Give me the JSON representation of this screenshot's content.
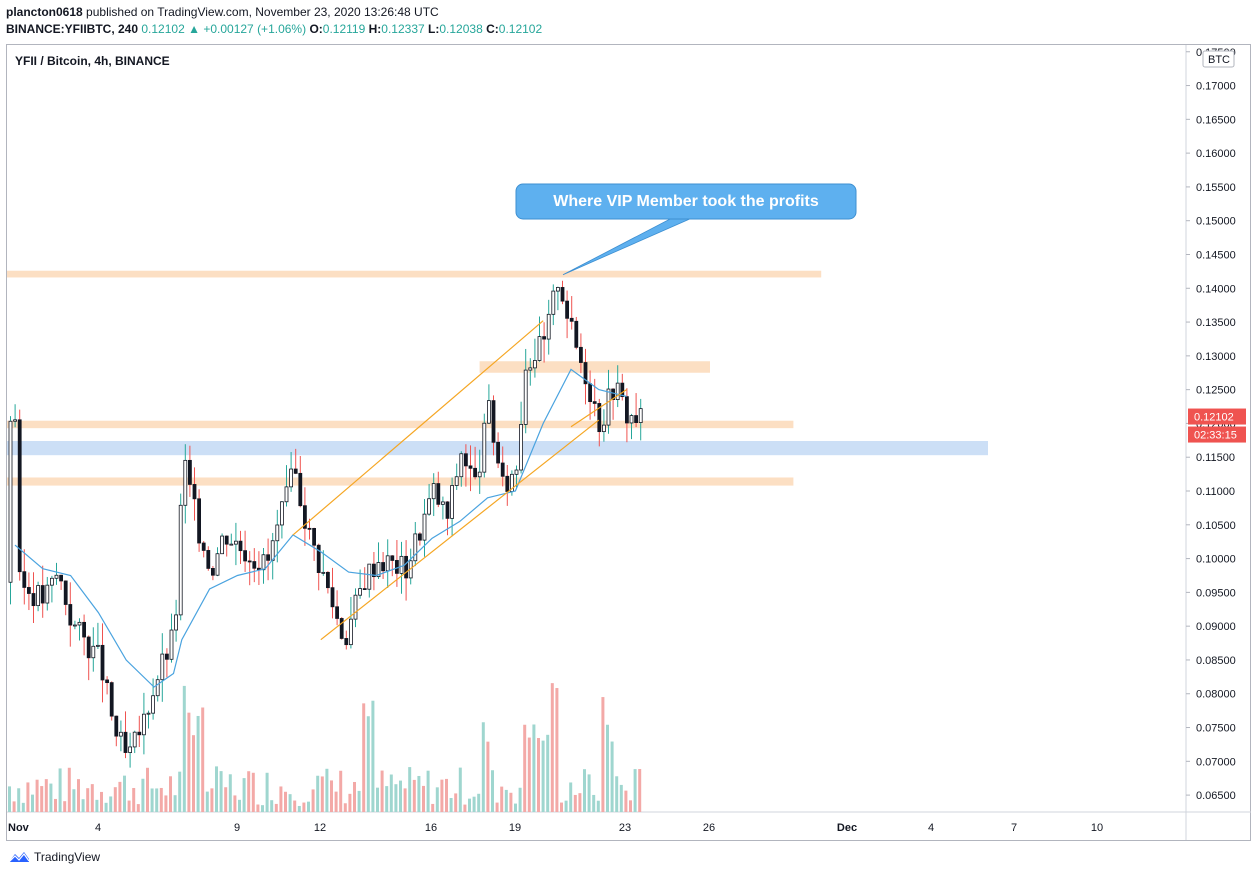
{
  "header": {
    "publisher": "plancton0618",
    "published_text": "published on TradingView.com, November 23, 2020 13:26:48 UTC",
    "symbol_line": "BINANCE:YFIIBTC, 240",
    "last": "0.12102",
    "change": "+0.00127 (+1.06%)",
    "o_label": "O:",
    "o": "0.12119",
    "h_label": "H:",
    "h": "0.12337",
    "l_label": "L:",
    "l": "0.12038",
    "c_label": "C:",
    "c": "0.12102"
  },
  "chart_title": "YFII / Bitcoin, 4h, BINANCE",
  "currency_badge": "BTC",
  "price_label": "0.12102",
  "countdown_label": "02:33:15",
  "annotation": "Where VIP Member took the profits",
  "footer": {
    "brand": "TradingView",
    "logo_icon": "tradingview-logo-icon"
  },
  "colors": {
    "up": "#26a69a",
    "down": "#ef5350",
    "candle_body": "#131722",
    "ma": "#4aa3df",
    "channel": "#f5a623",
    "zone_orange": "#fcd9b8",
    "zone_blue": "#c3d9f5",
    "callout": "#5eb0ef",
    "price_tag": "#ef5350"
  },
  "chart_data": {
    "type": "candlestick",
    "interval": "4h",
    "y_axis": {
      "ticks": [
        "0.17500",
        "0.17000",
        "0.16500",
        "0.16000",
        "0.15500",
        "0.15000",
        "0.14500",
        "0.14000",
        "0.13500",
        "0.13000",
        "0.12500",
        "0.12000",
        "0.11500",
        "0.11000",
        "0.10500",
        "0.10000",
        "0.09500",
        "0.09000",
        "0.08500",
        "0.08000",
        "0.07500",
        "0.07000",
        "0.06500"
      ],
      "range": [
        0.0625,
        0.176
      ]
    },
    "x_axis": {
      "ticks": [
        "Nov",
        "4",
        "9",
        "12",
        "16",
        "19",
        "23",
        "26",
        "Dec",
        "4",
        "7",
        "10"
      ],
      "bold_ticks": [
        "Nov",
        "Dec"
      ]
    },
    "zones": [
      {
        "type": "resistance",
        "from": 0.1416,
        "to": 0.1426,
        "x_start": "Nov 1",
        "x_end": "Nov 30"
      },
      {
        "type": "resistance",
        "from": 0.1275,
        "to": 0.1292,
        "x_start": "Nov 18",
        "x_end": "Nov 26"
      },
      {
        "type": "support",
        "from": 0.1193,
        "to": 0.1204,
        "x_start": "Nov 1",
        "x_end": "Nov 29"
      },
      {
        "type": "support",
        "from": 0.1108,
        "to": 0.112,
        "x_start": "Nov 1",
        "x_end": "Nov 29"
      },
      {
        "type": "range",
        "from": 0.1153,
        "to": 0.1174,
        "x_start": "Nov 1",
        "x_end": "Dec 6"
      }
    ],
    "channel": {
      "lower": [
        [
          "Nov 12",
          0.088
        ],
        [
          "Nov 22",
          0.1205
        ]
      ],
      "upper": [
        [
          "Nov 11",
          0.1035
        ],
        [
          "Nov 20",
          0.1352
        ]
      ],
      "extension": [
        [
          "Nov 21",
          0.1195
        ],
        [
          "Nov 23",
          0.125
        ]
      ]
    },
    "price_path": [
      [
        "Nov 1",
        0.0965
      ],
      [
        "Nov 2",
        0.094
      ],
      [
        "Nov 2.5",
        0.098
      ],
      [
        "Nov 3",
        0.0905
      ],
      [
        "Nov 4",
        0.085
      ],
      [
        "Nov 4.5",
        0.075
      ],
      [
        "Nov 5",
        0.07
      ],
      [
        "Nov 5.5",
        0.075
      ],
      [
        "Nov 6",
        0.082
      ],
      [
        "Nov 6.7",
        0.089
      ],
      [
        "Nov 7",
        0.115
      ],
      [
        "Nov 7.5",
        0.105
      ],
      [
        "Nov 8",
        0.0985
      ],
      [
        "Nov 8.5",
        0.104
      ],
      [
        "Nov 9",
        0.102
      ],
      [
        "Nov 10",
        0.099
      ],
      [
        "Nov 11",
        0.113
      ],
      [
        "Nov 11.5",
        0.104
      ],
      [
        "Nov 12",
        0.098
      ],
      [
        "Nov 12.8",
        0.088
      ],
      [
        "Nov 13.5",
        0.097
      ],
      [
        "Nov 14",
        0.1
      ],
      [
        "Nov 15",
        0.0985
      ],
      [
        "Nov 16",
        0.11
      ],
      [
        "Nov 16.5",
        0.106
      ],
      [
        "Nov 17",
        0.116
      ],
      [
        "Nov 17.5",
        0.111
      ],
      [
        "Nov 18",
        0.122
      ],
      [
        "Nov 18.5",
        0.11
      ],
      [
        "Nov 19",
        0.114
      ],
      [
        "Nov 19.3",
        0.129
      ],
      [
        "Nov 20",
        0.132
      ],
      [
        "Nov 20.5",
        0.142
      ],
      [
        "Nov 21",
        0.133
      ],
      [
        "Nov 21.5",
        0.127
      ],
      [
        "Nov 22",
        0.12
      ],
      [
        "Nov 22.5",
        0.126
      ],
      [
        "Nov 23",
        0.121
      ],
      [
        "Nov 23.5",
        0.121
      ]
    ],
    "ma_path": [
      [
        "Nov 1",
        0.102
      ],
      [
        "Nov 2",
        0.0985
      ],
      [
        "Nov 3",
        0.0975
      ],
      [
        "Nov 4",
        0.092
      ],
      [
        "Nov 5",
        0.085
      ],
      [
        "Nov 6",
        0.081
      ],
      [
        "Nov 6.7",
        0.083
      ],
      [
        "Nov 7",
        0.088
      ],
      [
        "Nov 8",
        0.0955
      ],
      [
        "Nov 9",
        0.0975
      ],
      [
        "Nov 10",
        0.0985
      ],
      [
        "Nov 11",
        0.1035
      ],
      [
        "Nov 12",
        0.101
      ],
      [
        "Nov 13",
        0.098
      ],
      [
        "Nov 14",
        0.0975
      ],
      [
        "Nov 15",
        0.099
      ],
      [
        "Nov 16",
        0.103
      ],
      [
        "Nov 17",
        0.1055
      ],
      [
        "Nov 18",
        0.109
      ],
      [
        "Nov 19",
        0.11
      ],
      [
        "Nov 20",
        0.12
      ],
      [
        "Nov 21",
        0.128
      ],
      [
        "Nov 22",
        0.125
      ],
      [
        "Nov 23",
        0.124
      ]
    ]
  }
}
